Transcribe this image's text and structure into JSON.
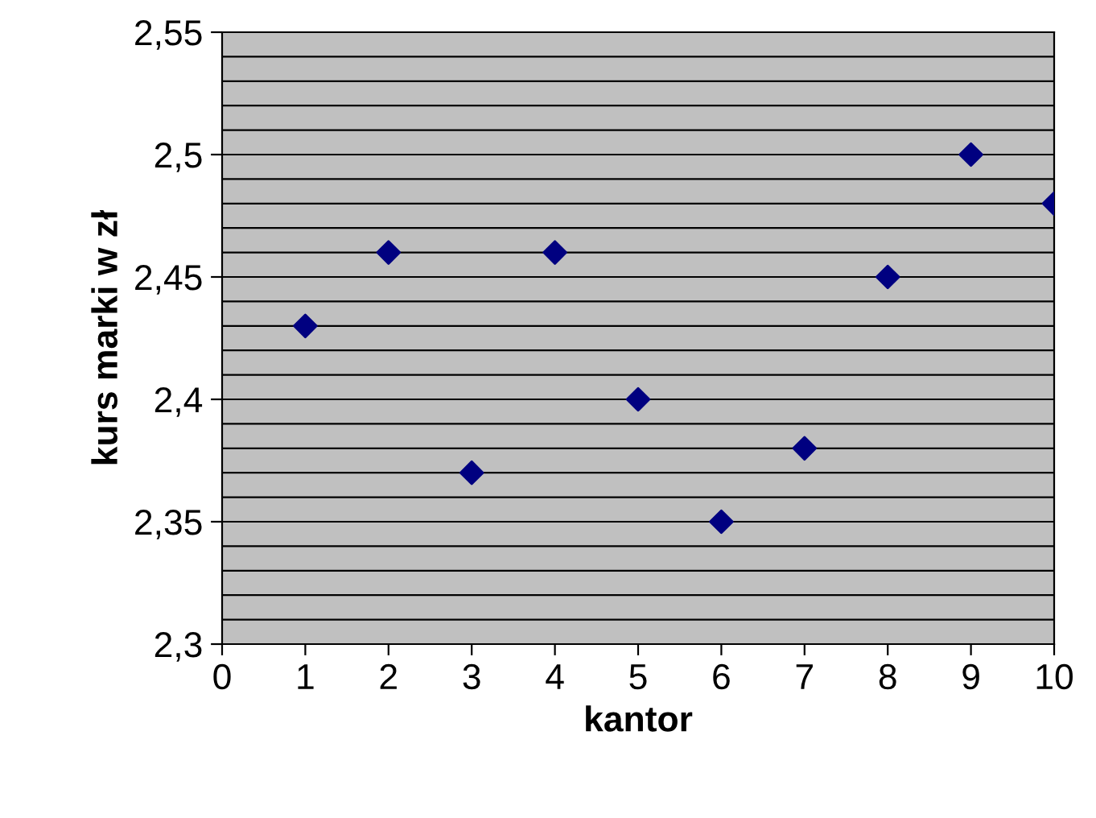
{
  "chart_data": {
    "type": "scatter",
    "xlabel": "kantor",
    "ylabel": "kurs marki w zł",
    "x": [
      1,
      2,
      3,
      4,
      5,
      6,
      7,
      8,
      9,
      10
    ],
    "series": [
      {
        "color": "#000080",
        "values": [
          2.43,
          2.46,
          2.37,
          2.46,
          2.4,
          2.35,
          2.38,
          2.45,
          2.5,
          2.48
        ]
      }
    ],
    "xlim": [
      0,
      10
    ],
    "xticks": [
      0,
      1,
      2,
      3,
      4,
      5,
      6,
      7,
      8,
      9,
      10
    ],
    "ylim": [
      2.3,
      2.55
    ],
    "yticks": [
      {
        "value": 2.3,
        "label": "2,3"
      },
      {
        "value": 2.31,
        "label": null
      },
      {
        "value": 2.32,
        "label": null
      },
      {
        "value": 2.33,
        "label": null
      },
      {
        "value": 2.34,
        "label": null
      },
      {
        "value": 2.35,
        "label": "2,35"
      },
      {
        "value": 2.36,
        "label": null
      },
      {
        "value": 2.37,
        "label": null
      },
      {
        "value": 2.38,
        "label": null
      },
      {
        "value": 2.39,
        "label": null
      },
      {
        "value": 2.4,
        "label": "2,4"
      },
      {
        "value": 2.41,
        "label": null
      },
      {
        "value": 2.42,
        "label": null
      },
      {
        "value": 2.43,
        "label": null
      },
      {
        "value": 2.44,
        "label": null
      },
      {
        "value": 2.45,
        "label": "2,45"
      },
      {
        "value": 2.46,
        "label": null
      },
      {
        "value": 2.47,
        "label": null
      },
      {
        "value": 2.48,
        "label": null
      },
      {
        "value": 2.49,
        "label": null
      },
      {
        "value": 2.5,
        "label": "2,5"
      },
      {
        "value": 2.51,
        "label": null
      },
      {
        "value": 2.52,
        "label": null
      },
      {
        "value": 2.53,
        "label": null
      },
      {
        "value": 2.54,
        "label": null
      },
      {
        "value": 2.55,
        "label": "2,55"
      }
    ],
    "grid": "y",
    "marker": "diamond",
    "legend": false
  }
}
